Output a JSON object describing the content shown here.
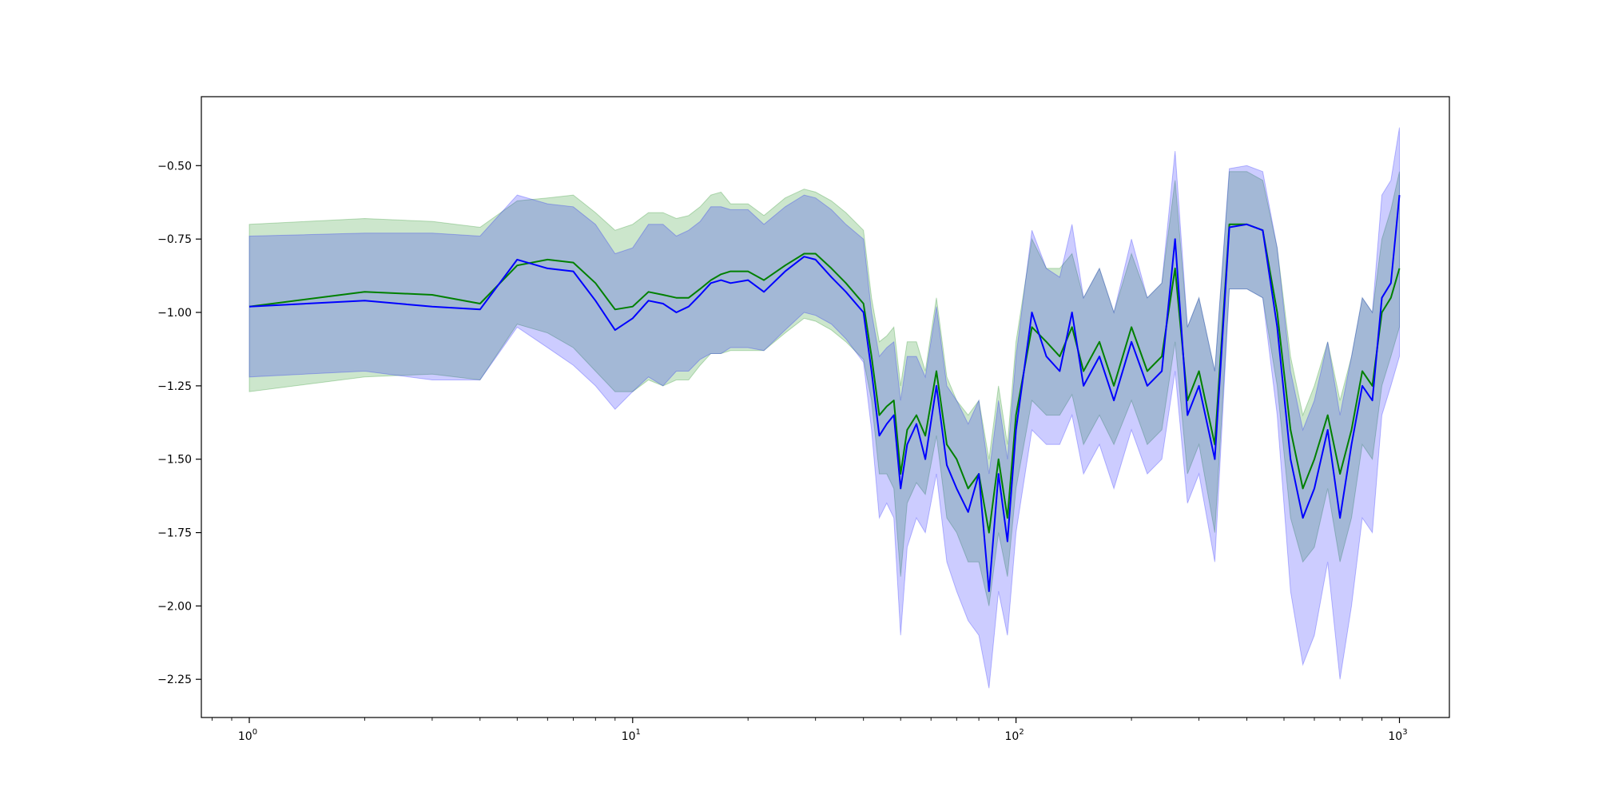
{
  "chart_data": {
    "type": "line",
    "title": "",
    "xlabel": "",
    "ylabel": "",
    "xscale": "log",
    "xlim": [
      0.75,
      1350
    ],
    "ylim": [
      -2.38,
      -0.265
    ],
    "grid": false,
    "legend": "none",
    "x_ticks": [
      {
        "base": "10",
        "exp": "0",
        "value": 1
      },
      {
        "base": "10",
        "exp": "1",
        "value": 10
      },
      {
        "base": "10",
        "exp": "2",
        "value": 100
      },
      {
        "base": "10",
        "exp": "3",
        "value": 1000
      }
    ],
    "y_ticks": [
      {
        "label": "−0.50",
        "value": -0.5
      },
      {
        "label": "−0.75",
        "value": -0.75
      },
      {
        "label": "−1.00",
        "value": -1.0
      },
      {
        "label": "−1.25",
        "value": -1.25
      },
      {
        "label": "−1.50",
        "value": -1.5
      },
      {
        "label": "−1.75",
        "value": -1.75
      },
      {
        "label": "−2.00",
        "value": -2.0
      },
      {
        "label": "−2.25",
        "value": -2.25
      }
    ],
    "series": [
      {
        "color": "#008000",
        "band_color": "#008000",
        "band_opacity": 0.2,
        "x": [
          1,
          2,
          3,
          4,
          5,
          6,
          7,
          8,
          9,
          10,
          11,
          12,
          13,
          14,
          15,
          16,
          17,
          18,
          20,
          22,
          25,
          28,
          30,
          33,
          36,
          40,
          42,
          44,
          46,
          48,
          50,
          52,
          55,
          58,
          62,
          66,
          70,
          75,
          80,
          85,
          90,
          95,
          100,
          110,
          120,
          130,
          140,
          150,
          165,
          180,
          200,
          220,
          240,
          260,
          280,
          300,
          330,
          360,
          400,
          440,
          480,
          520,
          560,
          600,
          650,
          700,
          750,
          800,
          850,
          900,
          950,
          1000
        ],
        "y": [
          -0.98,
          -0.93,
          -0.94,
          -0.97,
          -0.84,
          -0.82,
          -0.83,
          -0.9,
          -0.99,
          -0.98,
          -0.93,
          -0.94,
          -0.95,
          -0.95,
          -0.92,
          -0.89,
          -0.87,
          -0.86,
          -0.86,
          -0.89,
          -0.84,
          -0.8,
          -0.8,
          -0.85,
          -0.9,
          -0.97,
          -1.15,
          -1.35,
          -1.32,
          -1.3,
          -1.55,
          -1.4,
          -1.35,
          -1.42,
          -1.2,
          -1.45,
          -1.5,
          -1.6,
          -1.55,
          -1.75,
          -1.5,
          -1.7,
          -1.35,
          -1.05,
          -1.1,
          -1.15,
          -1.05,
          -1.2,
          -1.1,
          -1.25,
          -1.05,
          -1.2,
          -1.15,
          -0.85,
          -1.3,
          -1.2,
          -1.45,
          -0.7,
          -0.7,
          -0.72,
          -1.0,
          -1.4,
          -1.6,
          -1.5,
          -1.35,
          -1.55,
          -1.4,
          -1.2,
          -1.25,
          -1.0,
          -0.95,
          -0.85
        ],
        "y_low": [
          -1.27,
          -1.22,
          -1.21,
          -1.23,
          -1.04,
          -1.07,
          -1.12,
          -1.2,
          -1.27,
          -1.27,
          -1.23,
          -1.25,
          -1.23,
          -1.23,
          -1.18,
          -1.14,
          -1.14,
          -1.13,
          -1.13,
          -1.13,
          -1.07,
          -1.02,
          -1.03,
          -1.06,
          -1.1,
          -1.16,
          -1.3,
          -1.55,
          -1.55,
          -1.6,
          -1.9,
          -1.65,
          -1.58,
          -1.62,
          -1.42,
          -1.7,
          -1.75,
          -1.85,
          -1.85,
          -2.0,
          -1.75,
          -1.9,
          -1.6,
          -1.3,
          -1.35,
          -1.35,
          -1.28,
          -1.45,
          -1.35,
          -1.45,
          -1.3,
          -1.45,
          -1.4,
          -1.1,
          -1.55,
          -1.45,
          -1.75,
          -0.92,
          -0.92,
          -0.95,
          -1.25,
          -1.7,
          -1.85,
          -1.8,
          -1.6,
          -1.85,
          -1.7,
          -1.45,
          -1.5,
          -1.25,
          -1.15,
          -1.05
        ],
        "y_high": [
          -0.7,
          -0.68,
          -0.69,
          -0.71,
          -0.62,
          -0.61,
          -0.6,
          -0.66,
          -0.72,
          -0.7,
          -0.66,
          -0.66,
          -0.68,
          -0.67,
          -0.64,
          -0.6,
          -0.59,
          -0.63,
          -0.63,
          -0.67,
          -0.61,
          -0.58,
          -0.59,
          -0.62,
          -0.66,
          -0.72,
          -0.95,
          -1.1,
          -1.08,
          -1.05,
          -1.25,
          -1.1,
          -1.1,
          -1.2,
          -0.95,
          -1.22,
          -1.3,
          -1.35,
          -1.3,
          -1.5,
          -1.25,
          -1.45,
          -1.1,
          -0.75,
          -0.85,
          -0.85,
          -0.8,
          -0.95,
          -0.85,
          -1.0,
          -0.8,
          -0.95,
          -0.9,
          -0.55,
          -1.05,
          -0.95,
          -1.2,
          -0.52,
          -0.52,
          -0.55,
          -0.78,
          -1.15,
          -1.35,
          -1.25,
          -1.1,
          -1.3,
          -1.15,
          -0.95,
          -1.0,
          -0.75,
          -0.65,
          -0.52
        ]
      },
      {
        "color": "#0000ff",
        "band_color": "#0000ff",
        "band_opacity": 0.2,
        "x": [
          1,
          2,
          3,
          4,
          5,
          6,
          7,
          8,
          9,
          10,
          11,
          12,
          13,
          14,
          15,
          16,
          17,
          18,
          20,
          22,
          25,
          28,
          30,
          33,
          36,
          40,
          42,
          44,
          46,
          48,
          50,
          52,
          55,
          58,
          62,
          66,
          70,
          75,
          80,
          85,
          90,
          95,
          100,
          110,
          120,
          130,
          140,
          150,
          165,
          180,
          200,
          220,
          240,
          260,
          280,
          300,
          330,
          360,
          400,
          440,
          480,
          520,
          560,
          600,
          650,
          700,
          750,
          800,
          850,
          900,
          950,
          1000
        ],
        "y": [
          -0.98,
          -0.96,
          -0.98,
          -0.99,
          -0.82,
          -0.85,
          -0.86,
          -0.96,
          -1.06,
          -1.02,
          -0.96,
          -0.97,
          -1.0,
          -0.98,
          -0.94,
          -0.9,
          -0.89,
          -0.9,
          -0.89,
          -0.93,
          -0.86,
          -0.81,
          -0.82,
          -0.88,
          -0.93,
          -1.0,
          -1.2,
          -1.42,
          -1.38,
          -1.35,
          -1.6,
          -1.45,
          -1.38,
          -1.5,
          -1.25,
          -1.52,
          -1.6,
          -1.68,
          -1.55,
          -1.95,
          -1.55,
          -1.78,
          -1.4,
          -1.0,
          -1.15,
          -1.2,
          -1.0,
          -1.25,
          -1.15,
          -1.3,
          -1.1,
          -1.25,
          -1.2,
          -0.75,
          -1.35,
          -1.25,
          -1.5,
          -0.71,
          -0.7,
          -0.72,
          -1.05,
          -1.5,
          -1.7,
          -1.6,
          -1.4,
          -1.7,
          -1.45,
          -1.25,
          -1.3,
          -0.95,
          -0.9,
          -0.6
        ],
        "y_low": [
          -1.22,
          -1.2,
          -1.23,
          -1.23,
          -1.05,
          -1.12,
          -1.18,
          -1.25,
          -1.33,
          -1.27,
          -1.22,
          -1.25,
          -1.2,
          -1.2,
          -1.16,
          -1.14,
          -1.14,
          -1.12,
          -1.12,
          -1.13,
          -1.06,
          -1.0,
          -1.01,
          -1.04,
          -1.09,
          -1.17,
          -1.4,
          -1.7,
          -1.65,
          -1.7,
          -2.1,
          -1.8,
          -1.7,
          -1.75,
          -1.55,
          -1.85,
          -1.95,
          -2.05,
          -2.1,
          -2.28,
          -1.95,
          -2.1,
          -1.75,
          -1.4,
          -1.45,
          -1.45,
          -1.35,
          -1.55,
          -1.45,
          -1.6,
          -1.4,
          -1.55,
          -1.5,
          -1.2,
          -1.65,
          -1.55,
          -1.85,
          -0.92,
          -0.92,
          -0.95,
          -1.35,
          -1.95,
          -2.2,
          -2.1,
          -1.85,
          -2.25,
          -2.0,
          -1.7,
          -1.75,
          -1.35,
          -1.25,
          -1.15
        ],
        "y_high": [
          -0.74,
          -0.73,
          -0.73,
          -0.74,
          -0.6,
          -0.63,
          -0.64,
          -0.7,
          -0.8,
          -0.78,
          -0.7,
          -0.7,
          -0.74,
          -0.72,
          -0.69,
          -0.64,
          -0.64,
          -0.65,
          -0.65,
          -0.7,
          -0.64,
          -0.6,
          -0.61,
          -0.65,
          -0.7,
          -0.75,
          -1.0,
          -1.15,
          -1.12,
          -1.1,
          -1.3,
          -1.15,
          -1.15,
          -1.22,
          -0.98,
          -1.25,
          -1.3,
          -1.38,
          -1.3,
          -1.55,
          -1.3,
          -1.5,
          -1.15,
          -0.72,
          -0.85,
          -0.88,
          -0.7,
          -0.95,
          -0.85,
          -1.0,
          -0.75,
          -0.95,
          -0.9,
          -0.45,
          -1.05,
          -0.95,
          -1.2,
          -0.51,
          -0.5,
          -0.52,
          -0.78,
          -1.2,
          -1.4,
          -1.3,
          -1.1,
          -1.35,
          -1.15,
          -0.95,
          -1.0,
          -0.6,
          -0.55,
          -0.37
        ]
      }
    ]
  }
}
